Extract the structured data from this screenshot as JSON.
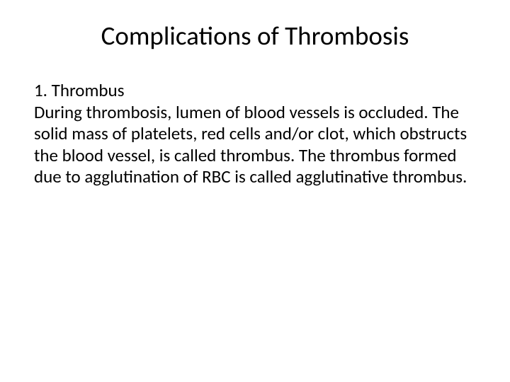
{
  "slide": {
    "title": "Complications of Thrombosis",
    "heading": "1. Thrombus",
    "paragraph": "During thrombosis, lumen of blood vessels is occluded. The solid mass of platelets, red cells and/or clot, which obstructs the blood vessel, is called thrombus. The thrombus formed due to agglutination of RBC is called agglutinative thrombus."
  },
  "styling": {
    "background_color": "#ffffff",
    "text_color": "#000000",
    "title_fontsize": 37,
    "body_fontsize": 25,
    "font_family": "Calibri"
  }
}
